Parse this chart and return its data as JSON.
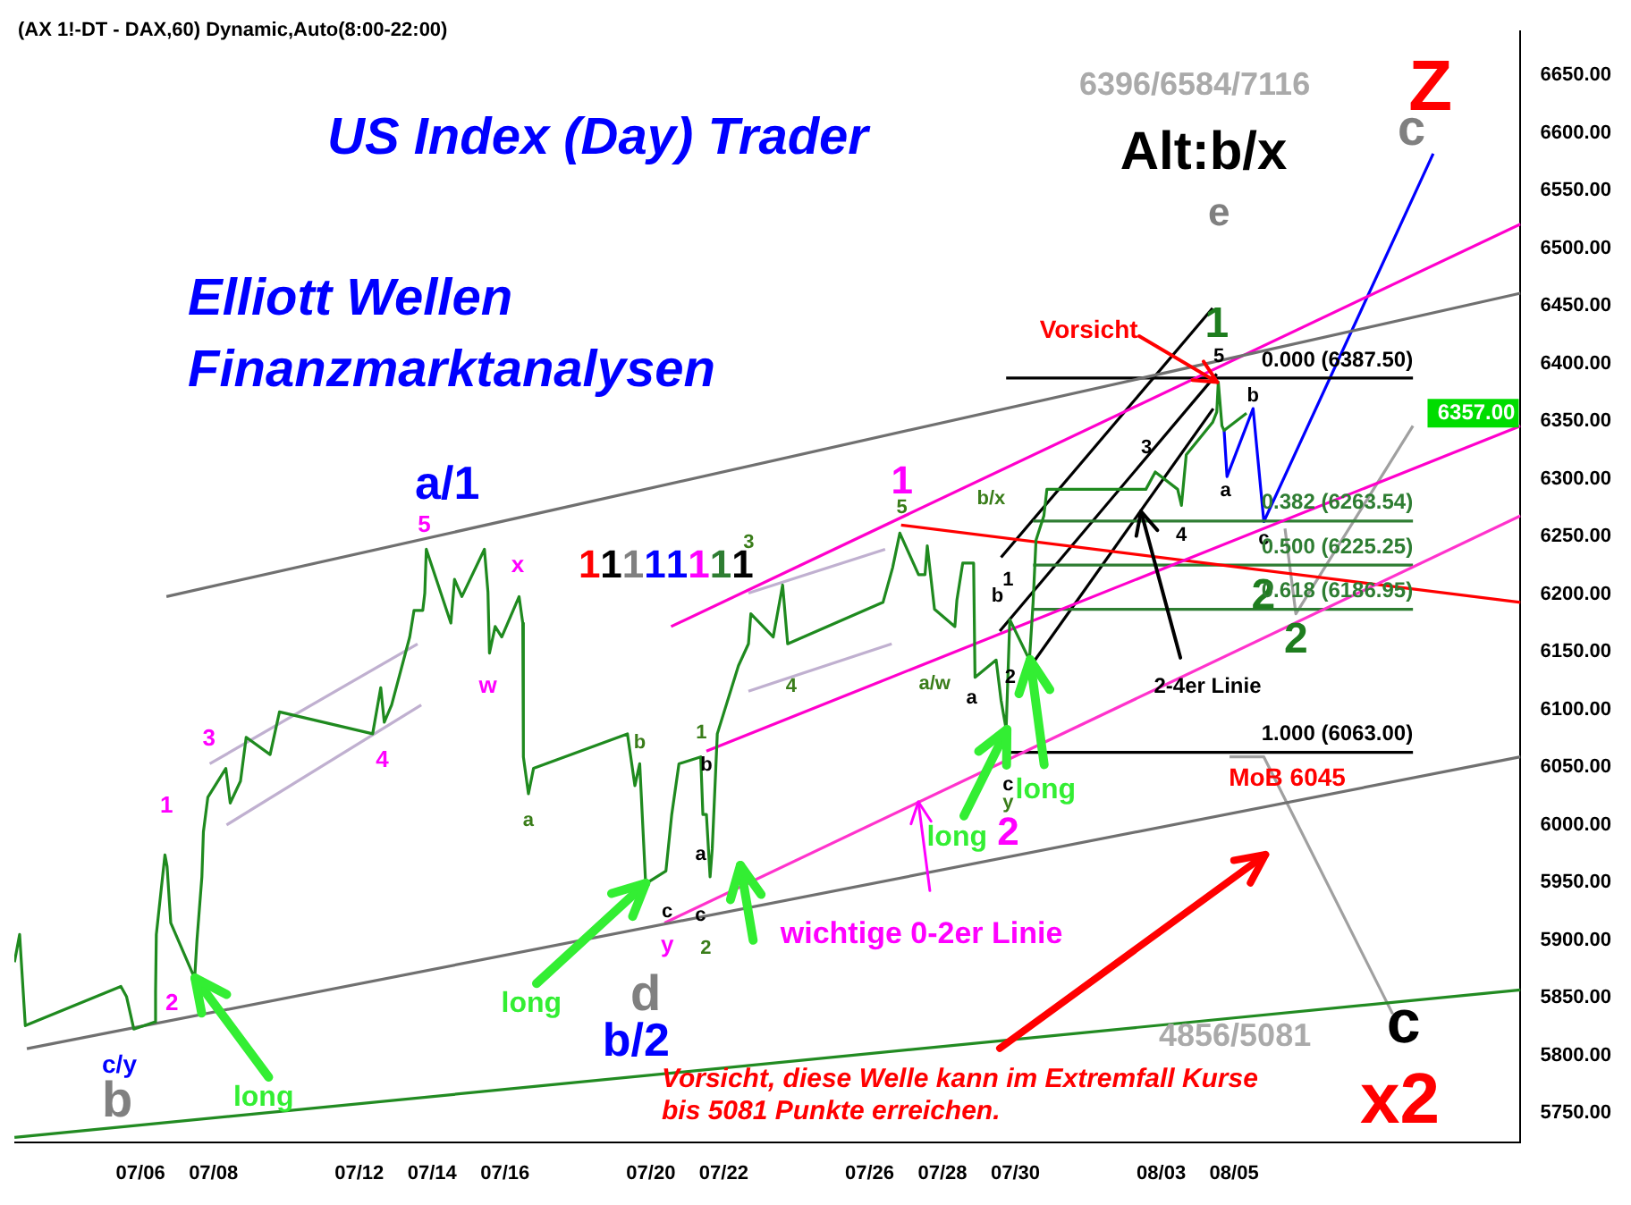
{
  "chart_data": {
    "type": "line",
    "title": "US Index (Day) Trader",
    "subtitle": "Elliott Wellen Finanzmarktanalysen",
    "xlim": [
      "--07-02T12:55",
      "--08-12T20:35"
    ],
    "ylim": [
      5725,
      6688
    ],
    "xticks": [
      {
        "value": "--07-06",
        "label": "07/06"
      },
      {
        "value": "--07-08",
        "label": "07/08"
      },
      {
        "value": "--07-12",
        "label": "07/12"
      },
      {
        "value": "--07-14",
        "label": "07/14"
      },
      {
        "value": "--07-16",
        "label": "07/16"
      },
      {
        "value": "--07-20",
        "label": "07/20"
      },
      {
        "value": "--07-22",
        "label": "07/22"
      },
      {
        "value": "--07-26",
        "label": "07/26"
      },
      {
        "value": "--07-28",
        "label": "07/28"
      },
      {
        "value": "--07-30",
        "label": "07/30"
      },
      {
        "value": "--08-03",
        "label": "08/03"
      },
      {
        "value": "--08-05",
        "label": "08/05"
      }
    ],
    "yticks": [
      {
        "value": 5750,
        "label": "5750.00"
      },
      {
        "value": 5800,
        "label": "5800.00"
      },
      {
        "value": 5850,
        "label": "5850.00"
      },
      {
        "value": 5900,
        "label": "5900.00"
      },
      {
        "value": 5950,
        "label": "5950.00"
      },
      {
        "value": 6000,
        "label": "6000.00"
      },
      {
        "value": 6050,
        "label": "6050.00"
      },
      {
        "value": 6100,
        "label": "6100.00"
      },
      {
        "value": 6150,
        "label": "6150.00"
      },
      {
        "value": 6200,
        "label": "6200.00"
      },
      {
        "value": 6250,
        "label": "6250.00"
      },
      {
        "value": 6300,
        "label": "6300.00"
      },
      {
        "value": 6350,
        "label": "6350.00"
      },
      {
        "value": 6400,
        "label": "6400.00"
      },
      {
        "value": 6450,
        "label": "6450.00"
      },
      {
        "value": 6500,
        "label": "6500.00"
      },
      {
        "value": 6550,
        "label": "6550.00"
      },
      {
        "value": 6600,
        "label": "6600.00"
      },
      {
        "value": 6650,
        "label": "6650.00"
      }
    ],
    "grid": false,
    "legend": false,
    "marker": "none",
    "line_style": "solid",
    "series": [
      {
        "color": "#1f8a1f",
        "x": [
          "--07-02T13:00",
          "--07-02T16:25",
          "--07-02T20:10",
          "--07-05T11:05",
          "--07-05T14:50",
          "--07-05T19:35",
          "--07-06T09:00",
          "--07-06T09:55",
          "--07-06T10:25",
          "--07-06T16:05",
          "--07-06T17:30",
          "--07-06T19:55",
          "--07-07T11:40",
          "--07-07T13:10",
          "--07-07T16:25",
          "--07-07T17:25",
          "--07-07T20:20",
          "--07-08T08:10",
          "--07-08T11:05",
          "--07-08T17:50",
          "--07-08T21:35",
          "--07-09T13:20",
          "--07-09T19:30",
          "--07-12T08:50",
          "--07-12T14:10",
          "--07-12T16:30",
          "--07-12T21:20",
          "--07-13T09:15",
          "--07-13T12:05",
          "--07-13T17:50",
          "--07-13T19:10",
          "--07-13T20:10",
          "--07-14T12:20",
          "--07-14T14:45",
          "--07-14T19:35",
          "--07-15T10:25",
          "--07-15T12:45",
          "--07-15T13:45",
          "--07-15T17:30",
          "--07-15T21:50",
          "--07-16T09:15",
          "--07-16T11:40",
          "--07-16T12:05",
          "--07-16T15:25",
          "--07-16T18:45",
          "--07-19T08:35",
          "--07-19T13:30",
          "--07-19T16:40",
          "--07-19T20:35",
          "--07-20T09:55",
          "--07-20T13:45",
          "--07-20T18:30",
          "--07-21T08:50",
          "--07-21T10:15",
          "--07-21T12:35",
          "--07-21T15:00",
          "--07-21T16:25",
          "--07-21T19:45",
          "--07-22T09:40",
          "--07-22T16:15",
          "--07-22T17:50",
          "--07-23T08:35",
          "--07-23T14:45",
          "--07-23T18:05",
          "--07-26T08:50",
          "--07-26T15:10",
          "--07-26T19:55",
          "--07-27T08:15",
          "--07-27T12:30",
          "--07-27T14:00",
          "--07-27T18:45",
          "--07-28T08:10",
          "--07-28T09:30",
          "--07-28T13:20",
          "--07-28T20:30",
          "--07-28T21:25",
          "--07-29T11:20",
          "--07-29T14:35",
          "--07-29T17:55",
          "--07-29T20:20",
          "--07-30T09:15",
          "--07-30T11:40",
          "--07-30T13:35",
          "--07-30T18:45",
          "--07-30T20:45",
          "--08-02T13:55",
          "--08-02T20:05",
          "--08-03T10:50",
          "--08-03T13:20",
          "--08-03T16:30",
          "--08-04T09:50",
          "--08-04T12:35",
          "--08-04T13:35",
          "--08-04T16:00",
          "--08-04T17:25",
          "--08-05T08:10"
        ],
        "values": [
          5881,
          5905,
          5826,
          5860,
          5851,
          5823,
          5829,
          5855,
          5905,
          5974,
          5964,
          5915,
          5867,
          5900,
          5955,
          5994,
          6024,
          6049,
          6019,
          6038,
          6076,
          6061,
          6098,
          6079,
          6119,
          6089,
          6104,
          6163,
          6186,
          6186,
          6201,
          6239,
          6175,
          6213,
          6198,
          6239,
          6202,
          6149,
          6172,
          6163,
          6198,
          6175,
          6059,
          6027,
          6049,
          6079,
          6034,
          6053,
          5949,
          5960,
          6009,
          6053,
          6059,
          6009,
          6009,
          5955,
          5979,
          6079,
          6138,
          6157,
          6183,
          6163,
          6208,
          6157,
          6193,
          6223,
          6253,
          6217,
          6217,
          6242,
          6187,
          6172,
          6195,
          6227,
          6227,
          6128,
          6143,
          6108,
          6083,
          6178,
          6143,
          6193,
          6247,
          6268,
          6291,
          6291,
          6306,
          6291,
          6277,
          6321,
          6349,
          6358,
          6384,
          6346,
          6342,
          6357
        ]
      },
      {
        "color": "#707070",
        "x": [
          "--07-06T17:05",
          "--08-12T20:35"
        ],
        "values": [
          6198,
          6461
        ]
      },
      {
        "color": "#707070",
        "x": [
          "--07-02T21:10",
          "--08-12T20:35"
        ],
        "values": [
          5806,
          6059
        ]
      },
      {
        "color": "#228b22",
        "x": [
          "--07-02T13:00",
          "--08-12T20:35"
        ],
        "values": [
          5729,
          5857
        ]
      },
      {
        "color": "#ff33cc",
        "x": [
          "--07-20T09:00",
          "--08-12T20:35"
        ],
        "values": [
          5915,
          6268
        ]
      },
      {
        "color": "#ff00cc",
        "x": [
          "--07-20T13:20",
          "--08-12T20:35"
        ],
        "values": [
          6172,
          6521
        ]
      },
      {
        "color": "#ff00cc",
        "x": [
          "--07-21T12:35",
          "--08-12T20:35"
        ],
        "values": [
          6064,
          6346
        ]
      },
      {
        "color": "#ff0000",
        "x": [
          "--07-26T20:45",
          "--08-12T20:35"
        ],
        "values": [
          6260,
          6193
        ]
      },
      {
        "color": "#000000",
        "x": [
          "--07-29T17:55",
          "--08-09T21:45"
        ],
        "values": [
          6387.5,
          6387.5
        ]
      },
      {
        "color": "#2e7d32",
        "x": [
          "--07-30T11:40",
          "--08-09T21:45"
        ],
        "values": [
          6263.54,
          6263.54
        ]
      },
      {
        "color": "#2e7d32",
        "x": [
          "--07-30T11:40",
          "--08-09T21:45"
        ],
        "values": [
          6225.25,
          6225.25
        ]
      },
      {
        "color": "#2e7d32",
        "x": [
          "--07-30T11:40",
          "--08-09T21:45"
        ],
        "values": [
          6186.95,
          6186.95
        ]
      },
      {
        "color": "#000000",
        "x": [
          "--07-29T17:55",
          "--08-09T21:45"
        ],
        "values": [
          6063,
          6063
        ]
      },
      {
        "color": "#000000",
        "x": [
          "--07-29T14:35",
          "--08-04T09:50"
        ],
        "values": [
          6232,
          6448
        ]
      },
      {
        "color": "#000000",
        "x": [
          "--07-29T13:45",
          "--08-04T12:35"
        ],
        "values": [
          6168,
          6391
        ]
      },
      {
        "color": "#000000",
        "x": [
          "--07-30T10:15",
          "--08-04T10:15"
        ],
        "values": [
          6138,
          6361
        ]
      },
      {
        "color": "#c0b0d0",
        "x": [
          "--07-07T21:35",
          "--07-13T14:25"
        ],
        "values": [
          6053,
          6157
        ]
      },
      {
        "color": "#c0b0d0",
        "x": [
          "--07-08T08:40",
          "--07-13T16:50"
        ],
        "values": [
          6000,
          6104
        ]
      },
      {
        "color": "#c0b0d0",
        "x": [
          "--07-22T16:15",
          "--07-26T10:15"
        ],
        "values": [
          6201,
          6239
        ]
      },
      {
        "color": "#c0b0d0",
        "x": [
          "--07-22T16:15",
          "--07-26T14:35"
        ],
        "values": [
          6116,
          6157
        ]
      },
      {
        "color": "#0000ff",
        "x": [
          "--08-04T17:25",
          "--08-04T19:20",
          "--08-05T12:30",
          "--08-05T19:35",
          "--08-10T11:05"
        ],
        "values": [
          6342,
          6302,
          6361,
          6263,
          6582
        ]
      },
      {
        "color": "#a0a0a0",
        "x": [
          "--08-06T09:30",
          "--08-06T16:40",
          "--08-09T21:45"
        ],
        "values": [
          6257,
          6183,
          6346
        ]
      },
      {
        "color": "#a0a0a0",
        "x": [
          "--08-04T21:00",
          "--08-05T19:35",
          "--08-09T08:25"
        ],
        "values": [
          6059,
          6059,
          5836
        ]
      }
    ],
    "annotations": [
      "(AX 1!-DT - DAX,60) Dynamic,Auto(8:00-22:00)",
      "6396/6584/7116",
      "Alt:b/x",
      "4856/5081",
      "Vorsicht, diese Welle kann im Extremfall Kurse bis 5081 Punkte erreichen.",
      "c/y",
      "b",
      "1",
      "2",
      "3",
      "4",
      "5",
      "a/1",
      "w",
      "x",
      "a",
      "b",
      "c",
      "y",
      "d",
      "b/2",
      "1",
      "b",
      "a",
      "c",
      "2",
      "11111111",
      "3",
      "4",
      "1",
      "5",
      "b/x",
      "a/w",
      "a",
      "b",
      "1",
      "2",
      "c",
      "y",
      "2",
      "3",
      "4",
      "5",
      "1",
      "a",
      "b",
      "c",
      "2",
      "2",
      "e",
      "c",
      "Z",
      "c",
      "x2",
      "MoB 6045",
      "6357.00",
      {
        "text": "Vorsicht",
        "x": "--08-04T13:35",
        "y": 6384
      },
      {
        "text": "wichtige 0-2er Linie",
        "x": "--07-27T08:15",
        "y": 6020
      },
      {
        "text": "2-4er Linie",
        "x": "--08-02T10:15",
        "y": 6272
      },
      {
        "text": "long",
        "x": "--07-07T11:40",
        "y": 5867
      },
      {
        "text": "long",
        "x": "--07-19T20:35",
        "y": 5949
      },
      {
        "text": "long",
        "x": "--07-29T17:55",
        "y": 6083
      },
      {
        "text": "long",
        "x": "--07-30T09:15",
        "y": 6143
      },
      {
        "text": "0.000 (6387.50)",
        "x": "--08-09T21:45",
        "y": 6387.5
      },
      {
        "text": "0.382 (6263.54)",
        "x": "--08-09T21:45",
        "y": 6263.54
      },
      {
        "text": "0.500 (6225.25)",
        "x": "--08-09T21:45",
        "y": 6225.25
      },
      {
        "text": "0.618 (6186.95)",
        "x": "--08-09T21:45",
        "y": 6186.95
      },
      {
        "text": "1.000 (6063.00)",
        "x": "--08-09T21:45",
        "y": 6063
      }
    ]
  }
}
